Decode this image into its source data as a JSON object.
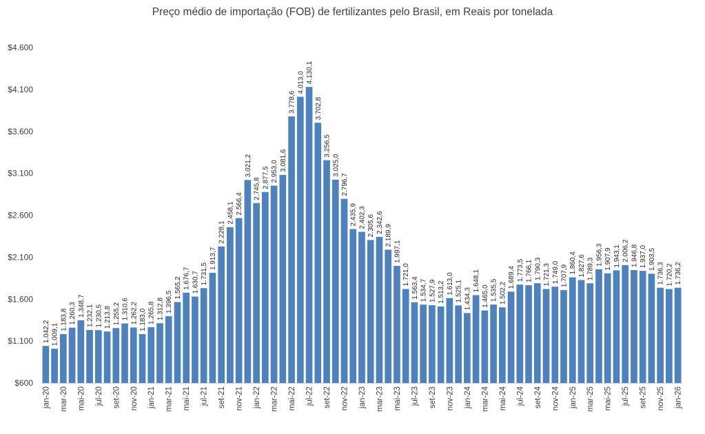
{
  "chart_data": {
    "type": "bar",
    "title": "Preço médio de importação (FOB) de fertilizantes pelo Brasil, em Reais por tonelada",
    "xlabel": "",
    "ylabel": "",
    "ylim": [
      600,
      4600
    ],
    "yticks": [
      600,
      1100,
      1600,
      2100,
      2600,
      3100,
      3600,
      4100,
      4600
    ],
    "ytick_labels": [
      "$600",
      "$1.100",
      "$1.600",
      "$2.100",
      "$2.600",
      "$3.100",
      "$3.600",
      "$4.100",
      "$4.600"
    ],
    "bar_color": "#4f81bd",
    "grid": false,
    "categories": [
      "jan-20",
      "fev-20",
      "mar-20",
      "abr-20",
      "mai-20",
      "jun-20",
      "jul-20",
      "ago-20",
      "set-20",
      "out-20",
      "nov-20",
      "dez-20",
      "jan-21",
      "fev-21",
      "mar-21",
      "abr-21",
      "mai-21",
      "jun-21",
      "jul-21",
      "ago-21",
      "set-21",
      "out-21",
      "nov-21",
      "dez-21",
      "jan-22",
      "fev-22",
      "mar-22",
      "abr-22",
      "mai-22",
      "jun-22",
      "jul-22",
      "ago-22",
      "set-22",
      "out-22",
      "nov-22",
      "dez-22",
      "jan-23",
      "fev-23",
      "mar-23",
      "abr-23",
      "mai-23",
      "jun-23",
      "jul-23",
      "ago-23",
      "set-23",
      "out-23",
      "nov-23",
      "dez-23",
      "jan-24",
      "fev-24",
      "mar-24",
      "abr-24",
      "mai-24",
      "jun-24",
      "jul-24",
      "ago-24",
      "set-24",
      "out-24",
      "nov-24",
      "dez-24",
      "jan-25",
      "fev-25",
      "mar-25",
      "abr-25",
      "mai-25",
      "jun-25",
      "jul-25",
      "ago-25",
      "set-25",
      "out-25",
      "nov-25",
      "dez-25",
      "jan-26"
    ],
    "tick_labels": [
      "jan-20",
      "mar-20",
      "mai-20",
      "jul-20",
      "set-20",
      "nov-20",
      "jan-21",
      "mar-21",
      "mai-21",
      "jul-21",
      "set-21",
      "nov-21",
      "jan-22",
      "mar-22",
      "mai-22",
      "jul-22",
      "set-22",
      "nov-22",
      "jan-23",
      "mar-23",
      "mai-23",
      "jul-23",
      "set-23",
      "nov-23",
      "jan-24",
      "mar-24",
      "mai-24",
      "jul-24",
      "set-24",
      "nov-24",
      "jan-25",
      "mar-25",
      "mai-25",
      "jul-25",
      "set-25",
      "nov-25",
      "jan-26"
    ],
    "values": [
      1042.2,
      1009.1,
      1183.8,
      1260.3,
      1348.7,
      1232.1,
      1230.5,
      1213.8,
      1255.2,
      1310.6,
      1262.2,
      1183.0,
      1265.8,
      1312.8,
      1396.5,
      1565.2,
      1676.7,
      1630.7,
      1731.5,
      1913.7,
      2228.1,
      2458.1,
      2566.4,
      3021.2,
      2745.8,
      2877.5,
      2953.0,
      3081.6,
      3778.6,
      4013.0,
      4130.1,
      3702.8,
      3256.5,
      3025.0,
      2796.7,
      2435.9,
      2402.3,
      2305.6,
      2342.6,
      2189.9,
      1997.1,
      1721.0,
      1563.4,
      1534.7,
      1527.9,
      1513.2,
      1613.0,
      1525.1,
      1434.3,
      1648.1,
      1465.0,
      1535.5,
      1502.2,
      1689.4,
      1773.5,
      1766.1,
      1790.3,
      1721.3,
      1749.0,
      1707.9,
      1860.4,
      1827.6,
      1789.3,
      1956.3,
      1907.9,
      1943.1,
      2006.2,
      1946.8,
      1937.0,
      1903.5,
      1736.3,
      1720.2,
      1736.2
    ],
    "value_labels": [
      "1.042,2",
      "1.009,1",
      "1.183,8",
      "1.260,3",
      "1.348,7",
      "1.232,1",
      "1.230,5",
      "1.213,8",
      "1.255,2",
      "1.310,6",
      "1.262,2",
      "1.183,0",
      "1.265,8",
      "1.312,8",
      "1.396,5",
      "1.565,2",
      "1.676,7",
      "1.630,7",
      "1.731,5",
      "1.913,7",
      "2.228,1",
      "2.458,1",
      "2.566,4",
      "3.021,2",
      "2.745,8",
      "2.877,5",
      "2.953,0",
      "3.081,6",
      "3.778,6",
      "4.013,0",
      "4.130,1",
      "3.702,8",
      "3.256,5",
      "3.025,0",
      "2.796,7",
      "2.435,9",
      "2.402,3",
      "2.305,6",
      "2.342,6",
      "2.189,9",
      "1.997,1",
      "1.721,0",
      "1.563,4",
      "1.534,7",
      "1.527,9",
      "1.513,2",
      "1.613,0",
      "1.525,1",
      "1.434,3",
      "1.648,1",
      "1.465,0",
      "1.535,5",
      "1.502,2",
      "1.689,4",
      "1.773,5",
      "1.766,1",
      "1.790,3",
      "1.721,3",
      "1.749,0",
      "1.707,9",
      "1.860,4",
      "1.827,6",
      "1.789,3",
      "1.956,3",
      "1.907,9",
      "1.943,1",
      "2.006,2",
      "1.946,8",
      "1.937,0",
      "1.903,5",
      "1.736,3",
      "1.720,2",
      "1.736,2"
    ]
  }
}
